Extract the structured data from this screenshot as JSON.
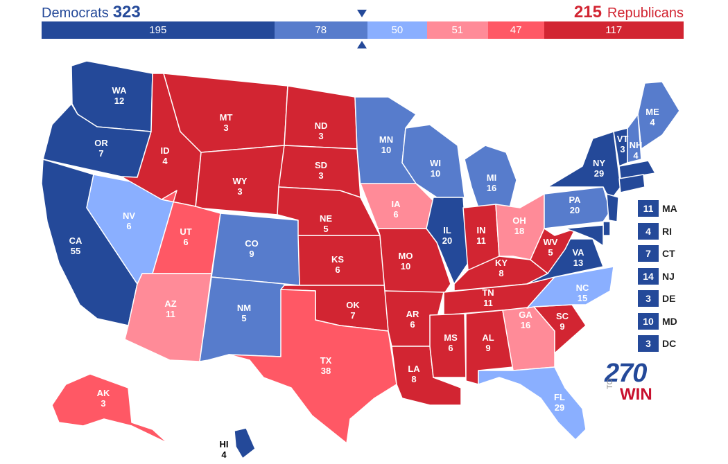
{
  "header": {
    "dem_label": "Democrats",
    "dem_total": "323",
    "rep_total": "215",
    "rep_label": "Republicans"
  },
  "bar": [
    {
      "value": 195,
      "label": "195",
      "color": "#244999"
    },
    {
      "value": 78,
      "label": "78",
      "color": "#577ccc"
    },
    {
      "value": 50,
      "label": "50",
      "color": "#8aafff"
    },
    {
      "value": 51,
      "label": "51",
      "color": "#ff8b98"
    },
    {
      "value": 47,
      "label": "47",
      "color": "#ff5865"
    },
    {
      "value": 117,
      "label": "117",
      "color": "#d22532"
    }
  ],
  "palette": {
    "safe_d": "#244999",
    "likely_d": "#577ccc",
    "lean_d": "#8aafff",
    "lean_r": "#ff8b98",
    "likely_r": "#ff5865",
    "safe_r": "#d22532"
  },
  "states": [
    {
      "abbr": "WA",
      "ev": "12",
      "rating": "safe_d"
    },
    {
      "abbr": "OR",
      "ev": "7",
      "rating": "safe_d"
    },
    {
      "abbr": "CA",
      "ev": "55",
      "rating": "safe_d"
    },
    {
      "abbr": "NV",
      "ev": "6",
      "rating": "lean_d"
    },
    {
      "abbr": "ID",
      "ev": "4",
      "rating": "safe_r"
    },
    {
      "abbr": "MT",
      "ev": "3",
      "rating": "safe_r"
    },
    {
      "abbr": "WY",
      "ev": "3",
      "rating": "safe_r"
    },
    {
      "abbr": "UT",
      "ev": "6",
      "rating": "likely_r"
    },
    {
      "abbr": "AZ",
      "ev": "11",
      "rating": "lean_r"
    },
    {
      "abbr": "CO",
      "ev": "9",
      "rating": "likely_d"
    },
    {
      "abbr": "NM",
      "ev": "5",
      "rating": "likely_d"
    },
    {
      "abbr": "ND",
      "ev": "3",
      "rating": "safe_r"
    },
    {
      "abbr": "SD",
      "ev": "3",
      "rating": "safe_r"
    },
    {
      "abbr": "NE",
      "ev": "5",
      "rating": "safe_r"
    },
    {
      "abbr": "KS",
      "ev": "6",
      "rating": "safe_r"
    },
    {
      "abbr": "OK",
      "ev": "7",
      "rating": "safe_r"
    },
    {
      "abbr": "TX",
      "ev": "38",
      "rating": "likely_r"
    },
    {
      "abbr": "MN",
      "ev": "10",
      "rating": "likely_d"
    },
    {
      "abbr": "IA",
      "ev": "6",
      "rating": "lean_r"
    },
    {
      "abbr": "MO",
      "ev": "10",
      "rating": "safe_r"
    },
    {
      "abbr": "AR",
      "ev": "6",
      "rating": "safe_r"
    },
    {
      "abbr": "LA",
      "ev": "8",
      "rating": "safe_r"
    },
    {
      "abbr": "WI",
      "ev": "10",
      "rating": "likely_d"
    },
    {
      "abbr": "IL",
      "ev": "20",
      "rating": "safe_d"
    },
    {
      "abbr": "MI",
      "ev": "16",
      "rating": "likely_d"
    },
    {
      "abbr": "IN",
      "ev": "11",
      "rating": "safe_r"
    },
    {
      "abbr": "OH",
      "ev": "18",
      "rating": "lean_r"
    },
    {
      "abbr": "KY",
      "ev": "8",
      "rating": "safe_r"
    },
    {
      "abbr": "TN",
      "ev": "11",
      "rating": "safe_r"
    },
    {
      "abbr": "MS",
      "ev": "6",
      "rating": "safe_r"
    },
    {
      "abbr": "AL",
      "ev": "9",
      "rating": "safe_r"
    },
    {
      "abbr": "GA",
      "ev": "16",
      "rating": "lean_r"
    },
    {
      "abbr": "FL",
      "ev": "29",
      "rating": "lean_d"
    },
    {
      "abbr": "SC",
      "ev": "9",
      "rating": "safe_r"
    },
    {
      "abbr": "NC",
      "ev": "15",
      "rating": "lean_d"
    },
    {
      "abbr": "VA",
      "ev": "13",
      "rating": "safe_d"
    },
    {
      "abbr": "WV",
      "ev": "5",
      "rating": "safe_r"
    },
    {
      "abbr": "PA",
      "ev": "20",
      "rating": "likely_d"
    },
    {
      "abbr": "NY",
      "ev": "29",
      "rating": "safe_d"
    },
    {
      "abbr": "VT",
      "ev": "3",
      "rating": "safe_d"
    },
    {
      "abbr": "NH",
      "ev": "4",
      "rating": "likely_d"
    },
    {
      "abbr": "ME",
      "ev": "4",
      "rating": "likely_d"
    },
    {
      "abbr": "AK",
      "ev": "3",
      "rating": "likely_r"
    },
    {
      "abbr": "HI",
      "ev": "4",
      "rating": "safe_d"
    }
  ],
  "small_states": [
    {
      "abbr": "MA",
      "ev": "11"
    },
    {
      "abbr": "RI",
      "ev": "4"
    },
    {
      "abbr": "CT",
      "ev": "7"
    },
    {
      "abbr": "NJ",
      "ev": "14"
    },
    {
      "abbr": "DE",
      "ev": "3"
    },
    {
      "abbr": "MD",
      "ev": "10"
    },
    {
      "abbr": "DC",
      "ev": "3"
    }
  ],
  "logo": {
    "number": "270",
    "to": "TO",
    "win": "WIN"
  }
}
